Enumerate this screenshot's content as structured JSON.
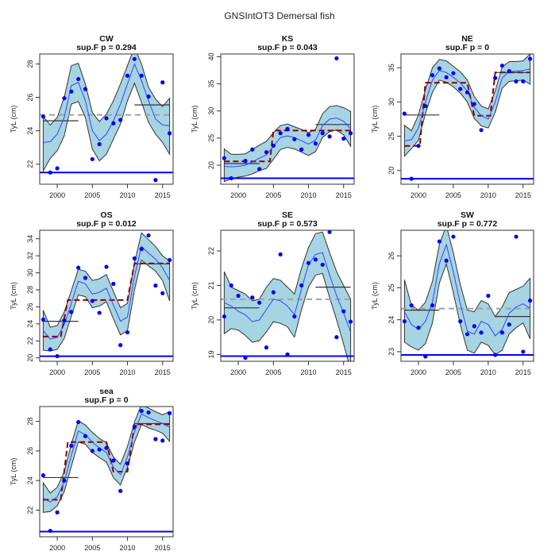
{
  "figure": {
    "title": "GNSIntOT3 Demersal fish"
  },
  "chart_data": [
    {
      "type": "line",
      "name": "CW",
      "title": "CW",
      "subtitle": "sup.F p = 0.294",
      "xlabel": "",
      "ylabel": "TyL (cm)",
      "xlim": [
        1997.5,
        2016.5
      ],
      "ylim": [
        20.8,
        28.6
      ],
      "xticks": [
        2000,
        2005,
        2010,
        2015
      ],
      "yticks": [
        22,
        24,
        26,
        28
      ],
      "x": [
        1998,
        1999,
        2000,
        2001,
        2002,
        2003,
        2004,
        2005,
        2006,
        2007,
        2008,
        2009,
        2010,
        2011,
        2012,
        2013,
        2014,
        2015,
        2016
      ],
      "points": [
        24.85,
        21.5,
        21.75,
        25.95,
        26.35,
        27.1,
        26.5,
        22.3,
        23.2,
        24.75,
        24.45,
        24.65,
        27.3,
        28.3,
        27.3,
        26.05,
        21.05,
        26.9,
        23.85
      ],
      "fit": [
        23.3,
        23.35,
        23.8,
        24.8,
        26.7,
        26.9,
        25.8,
        24.0,
        23.4,
        23.8,
        24.6,
        25.6,
        26.8,
        28.0,
        27.0,
        25.8,
        24.7,
        24.35,
        24.3
      ],
      "ci_upper": [
        24.85,
        24.35,
        24.8,
        26.0,
        27.9,
        28.05,
        26.8,
        25.1,
        24.55,
        25.0,
        25.8,
        26.8,
        27.9,
        29.0,
        28.0,
        26.6,
        25.9,
        25.45,
        25.95
      ],
      "ci_lower": [
        21.6,
        22.35,
        22.8,
        23.7,
        25.6,
        25.75,
        24.8,
        22.9,
        22.2,
        22.6,
        23.5,
        24.4,
        25.8,
        26.85,
        25.7,
        24.5,
        23.8,
        23.3,
        22.6
      ],
      "step_red": null,
      "segments_black": [
        [
          1998,
          2003,
          24.6
        ],
        [
          2011,
          2016,
          25.55
        ]
      ],
      "mean_gray": 24.95,
      "baseline_blue": 21.5
    },
    {
      "type": "line",
      "name": "KS",
      "title": "KS",
      "subtitle": "sup.F p = 0.043",
      "xlabel": "",
      "ylabel": "TyL (cm)",
      "xlim": [
        1997.5,
        2016.5
      ],
      "ylim": [
        16.5,
        40.5
      ],
      "xticks": [
        2000,
        2005,
        2010,
        2015
      ],
      "yticks": [
        20,
        25,
        30,
        35,
        40
      ],
      "x": [
        1998,
        1999,
        2000,
        2001,
        2002,
        2003,
        2004,
        2005,
        2006,
        2007,
        2008,
        2009,
        2010,
        2011,
        2012,
        2013,
        2014,
        2015,
        2016
      ],
      "points": [
        21.3,
        17.6,
        null,
        20.8,
        22.9,
        19.3,
        22.4,
        23.6,
        25.9,
        26.7,
        24.8,
        22.9,
        25.6,
        24.0,
        25.9,
        25.3,
        39.7,
        24.9,
        25.9
      ],
      "fit": [
        19.8,
        19.7,
        19.8,
        20.0,
        20.6,
        21.3,
        21.9,
        23.5,
        25.1,
        25.4,
        25.1,
        24.5,
        23.9,
        24.6,
        27.3,
        28.5,
        28.7,
        28.1,
        26.7
      ],
      "ci_upper": [
        23.0,
        22.0,
        22.0,
        22.1,
        22.9,
        23.7,
        24.4,
        26.0,
        27.3,
        27.6,
        27.1,
        26.6,
        26.0,
        26.6,
        29.5,
        30.8,
        31.0,
        30.6,
        29.9
      ],
      "ci_lower": [
        17.0,
        17.5,
        17.8,
        18.0,
        18.4,
        19.0,
        19.4,
        21.1,
        22.9,
        23.3,
        23.0,
        22.4,
        21.8,
        22.5,
        25.1,
        26.2,
        26.5,
        25.6,
        23.5
      ],
      "step_red": [
        [
          1998,
          20.7
        ],
        [
          2004.5,
          20.7
        ],
        [
          2005,
          26.4
        ],
        [
          2016,
          26.4
        ]
      ],
      "segments_black": [
        [
          1998,
          2003,
          20.3
        ],
        [
          2011,
          2016,
          27.5
        ]
      ],
      "mean_gray": null,
      "baseline_blue": 17.6
    },
    {
      "type": "line",
      "name": "NE",
      "title": "NE",
      "subtitle": "sup.F p = 0",
      "xlabel": "",
      "ylabel": "TyL (cm)",
      "xlim": [
        1997.5,
        2016.5
      ],
      "ylim": [
        18.0,
        37.0
      ],
      "xticks": [
        2000,
        2005,
        2010,
        2015
      ],
      "yticks": [
        20,
        25,
        30,
        35
      ],
      "x": [
        1998,
        1999,
        2000,
        2001,
        2002,
        2003,
        2004,
        2005,
        2006,
        2007,
        2008,
        2009,
        2010,
        2011,
        2012,
        2013,
        2014,
        2015,
        2016
      ],
      "points": [
        28.3,
        18.8,
        23.6,
        29.4,
        33.9,
        34.9,
        33.6,
        34.2,
        31.9,
        31.4,
        29.7,
        25.9,
        null,
        33.5,
        35.3,
        34.5,
        33.0,
        33.0,
        36.3
      ],
      "fit": [
        24.3,
        24.5,
        26.2,
        30.0,
        33.2,
        34.6,
        34.3,
        33.6,
        32.8,
        31.6,
        29.2,
        28.0,
        27.5,
        30.0,
        33.5,
        34.4,
        34.5,
        34.6,
        34.8
      ],
      "ci_upper": [
        26.6,
        25.8,
        28.1,
        31.8,
        35.0,
        36.2,
        36.0,
        35.2,
        34.4,
        33.2,
        30.8,
        29.4,
        29.0,
        31.6,
        35.1,
        35.9,
        35.9,
        36.0,
        37.0
      ],
      "ci_lower": [
        22.1,
        23.2,
        24.4,
        28.3,
        31.4,
        33.2,
        32.9,
        32.2,
        31.3,
        30.0,
        27.6,
        26.5,
        26.2,
        28.5,
        32.0,
        33.0,
        33.1,
        33.2,
        32.6
      ],
      "step_red": [
        [
          1998,
          23.6
        ],
        [
          2000.2,
          23.6
        ],
        [
          2001,
          32.8
        ],
        [
          2007,
          32.8
        ],
        [
          2008,
          28.0
        ],
        [
          2010.3,
          28.0
        ],
        [
          2011,
          34.3
        ],
        [
          2016,
          34.3
        ]
      ],
      "segments_black": [
        [
          1998,
          2003,
          28.1
        ],
        [
          2011,
          2016,
          34.3
        ]
      ],
      "mean_gray": null,
      "baseline_blue": 18.8
    },
    {
      "type": "line",
      "name": "OS",
      "title": "OS",
      "subtitle": "sup.F p = 0.012",
      "xlabel": "",
      "ylabel": "TyL (cm)",
      "xlim": [
        1997.5,
        2016.5
      ],
      "ylim": [
        19.6,
        35.0
      ],
      "xticks": [
        2000,
        2005,
        2010,
        2015
      ],
      "yticks": [
        20,
        22,
        24,
        26,
        28,
        30,
        32,
        34
      ],
      "x": [
        1998,
        1999,
        2000,
        2001,
        2002,
        2003,
        2004,
        2005,
        2006,
        2007,
        2008,
        2009,
        2010,
        2011,
        2012,
        2013,
        2014,
        2015,
        2016
      ],
      "points": [
        24.5,
        21.0,
        20.2,
        24.4,
        25.4,
        30.6,
        29.4,
        26.7,
        25.3,
        30.7,
        28.7,
        21.5,
        23.0,
        31.7,
        32.8,
        34.4,
        28.5,
        27.6,
        31.5
      ],
      "fit": [
        23.2,
        22.2,
        22.4,
        23.9,
        26.4,
        29.0,
        28.7,
        27.5,
        27.7,
        28.2,
        26.2,
        24.3,
        24.8,
        29.6,
        33.1,
        32.3,
        31.6,
        30.6,
        29.1
      ],
      "ci_upper": [
        25.6,
        23.6,
        23.8,
        25.4,
        27.9,
        30.4,
        30.2,
        29.1,
        29.3,
        29.8,
        27.8,
        25.9,
        26.4,
        31.2,
        34.7,
        33.9,
        33.1,
        32.0,
        31.4
      ],
      "ci_lower": [
        20.9,
        20.8,
        21.0,
        22.3,
        24.9,
        27.4,
        27.2,
        25.9,
        26.1,
        26.6,
        24.6,
        22.7,
        23.2,
        28.0,
        31.5,
        30.8,
        30.2,
        29.1,
        26.7
      ],
      "step_red": [
        [
          1998,
          22.5
        ],
        [
          2000.5,
          22.5
        ],
        [
          2001.5,
          26.8
        ],
        [
          2010,
          26.8
        ],
        [
          2011,
          31.1
        ],
        [
          2016,
          31.1
        ]
      ],
      "segments_black": [
        [
          1998,
          2003,
          24.3
        ],
        [
          2011,
          2016,
          31.05
        ]
      ],
      "mean_gray": null,
      "baseline_blue": 20.2
    },
    {
      "type": "line",
      "name": "SE",
      "title": "SE",
      "subtitle": "sup.F p = 0.573",
      "xlabel": "",
      "ylabel": "TyL (cm)",
      "xlim": [
        1997.5,
        2016.5
      ],
      "ylim": [
        18.8,
        22.6
      ],
      "xticks": [
        2000,
        2005,
        2010,
        2015
      ],
      "yticks": [
        19,
        20,
        21,
        22
      ],
      "x": [
        1998,
        1999,
        2000,
        2001,
        2002,
        2003,
        2004,
        2005,
        2006,
        2007,
        2008,
        2009,
        2010,
        2011,
        2012,
        2013,
        2014,
        2015,
        2016
      ],
      "points": [
        20.1,
        21.0,
        20.7,
        18.9,
        20.65,
        20.5,
        19.2,
        20.8,
        21.9,
        19.0,
        20.1,
        21.0,
        21.65,
        21.75,
        21.6,
        22.55,
        19.5,
        20.25,
        19.95
      ],
      "fit": [
        20.5,
        20.4,
        20.25,
        20.15,
        19.95,
        20.0,
        20.3,
        20.6,
        20.55,
        20.4,
        20.15,
        20.9,
        21.6,
        21.9,
        21.95,
        21.3,
        20.7,
        20.2,
        19.65
      ],
      "ci_upper": [
        21.4,
        20.95,
        20.85,
        20.75,
        20.55,
        20.6,
        20.95,
        21.2,
        21.15,
        20.95,
        20.75,
        21.5,
        22.1,
        22.5,
        22.55,
        21.95,
        21.4,
        21.0,
        20.6
      ],
      "ci_lower": [
        19.6,
        19.75,
        19.7,
        19.55,
        19.35,
        19.4,
        19.65,
        19.95,
        19.9,
        19.8,
        19.5,
        20.3,
        20.95,
        21.3,
        21.35,
        20.65,
        20.0,
        19.3,
        18.55
      ],
      "step_red": null,
      "segments_black": [
        [
          1998,
          2003,
          20.35
        ],
        [
          2011,
          2016,
          20.95
        ]
      ],
      "mean_gray": 20.6,
      "baseline_blue": 18.95
    },
    {
      "type": "line",
      "name": "SW",
      "title": "SW",
      "subtitle": "sup.F p = 0.772",
      "xlabel": "",
      "ylabel": "TyL (cm)",
      "xlim": [
        1997.5,
        2016.5
      ],
      "ylim": [
        22.7,
        26.8
      ],
      "xticks": [
        2000,
        2005,
        2010,
        2015
      ],
      "yticks": [
        23,
        24,
        25,
        26
      ],
      "x": [
        1998,
        1999,
        2000,
        2001,
        2002,
        2003,
        2004,
        2005,
        2006,
        2007,
        2008,
        2009,
        2010,
        2011,
        2012,
        2013,
        2014,
        2015,
        2016
      ],
      "points": [
        23.95,
        24.45,
        23.75,
        22.85,
        24.45,
        26.45,
        25.85,
        26.6,
        23.95,
        23.55,
        23.8,
        23.6,
        24.75,
        22.9,
        23.6,
        23.85,
        26.6,
        23.0,
        24.6
      ],
      "fit": [
        24.25,
        23.85,
        23.7,
        23.95,
        24.55,
        25.75,
        26.35,
        25.5,
        24.5,
        23.65,
        23.55,
        23.95,
        23.85,
        23.5,
        23.7,
        24.2,
        24.4,
        24.5,
        24.35
      ],
      "ci_upper": [
        25.25,
        24.45,
        24.3,
        24.55,
        25.2,
        26.35,
        26.95,
        26.1,
        25.1,
        24.3,
        24.25,
        24.6,
        24.5,
        24.1,
        24.4,
        24.85,
        24.95,
        25.05,
        25.3
      ],
      "ci_lower": [
        23.3,
        23.15,
        23.05,
        23.25,
        23.9,
        25.15,
        25.75,
        24.85,
        23.85,
        23.05,
        22.95,
        23.3,
        23.2,
        22.9,
        23.05,
        23.55,
        23.75,
        23.9,
        23.4
      ],
      "step_red": null,
      "segments_black": [
        [
          1998,
          2003,
          24.3
        ],
        [
          2011,
          2016,
          24.1
        ]
      ],
      "mean_gray": 24.35,
      "baseline_blue": 22.9
    },
    {
      "type": "line",
      "name": "sea",
      "title": "sea",
      "subtitle": "sup.F p = 0",
      "xlabel": "",
      "ylabel": "TyL (cm)",
      "xlim": [
        1997.5,
        2016.5
      ],
      "ylim": [
        20.2,
        29.0
      ],
      "xticks": [
        2000,
        2005,
        2010,
        2015
      ],
      "yticks": [
        22,
        24,
        26,
        28
      ],
      "x": [
        1998,
        1999,
        2000,
        2001,
        2002,
        2003,
        2004,
        2005,
        2006,
        2007,
        2008,
        2009,
        2010,
        2011,
        2012,
        2013,
        2014,
        2015,
        2016
      ],
      "points": [
        24.35,
        20.6,
        21.85,
        24.0,
        26.35,
        27.95,
        27.0,
        26.0,
        26.1,
        26.2,
        25.35,
        23.3,
        25.15,
        27.65,
        28.7,
        28.6,
        26.8,
        26.7,
        28.55
      ],
      "fit": [
        22.8,
        22.55,
        22.9,
        23.9,
        25.7,
        27.35,
        27.1,
        26.6,
        26.2,
        25.9,
        24.9,
        24.4,
        25.6,
        27.3,
        28.5,
        28.25,
        28.05,
        27.85,
        27.6
      ],
      "ci_upper": [
        23.85,
        23.15,
        23.55,
        24.6,
        26.45,
        28.05,
        27.75,
        27.25,
        26.85,
        26.55,
        25.6,
        25.1,
        26.3,
        27.95,
        29.15,
        28.9,
        28.65,
        28.45,
        28.65
      ],
      "ci_lower": [
        21.85,
        21.9,
        22.3,
        23.25,
        24.95,
        26.6,
        26.45,
        25.9,
        25.55,
        25.25,
        24.2,
        23.7,
        24.9,
        26.6,
        27.8,
        27.55,
        27.4,
        27.2,
        26.65
      ],
      "step_red": [
        [
          1998,
          22.7
        ],
        [
          2000.5,
          22.7
        ],
        [
          2001.5,
          26.6
        ],
        [
          2007,
          26.6
        ],
        [
          2008,
          24.6
        ],
        [
          2010,
          24.6
        ],
        [
          2011,
          27.8
        ],
        [
          2016,
          27.8
        ]
      ],
      "segments_black": [
        [
          1998,
          2003,
          24.2
        ],
        [
          2011,
          2016,
          27.85
        ]
      ],
      "mean_gray": null,
      "baseline_blue": 20.55
    }
  ],
  "colors": {
    "band_fill": "#a6d4e2",
    "band_stroke": "#333333",
    "fit_line": "#3344ff",
    "points": "#0000ff",
    "baseline": "#0000ff",
    "step_red": "#8b0000",
    "segment_black": "#333333",
    "mean_gray": "#a0a0a0"
  }
}
